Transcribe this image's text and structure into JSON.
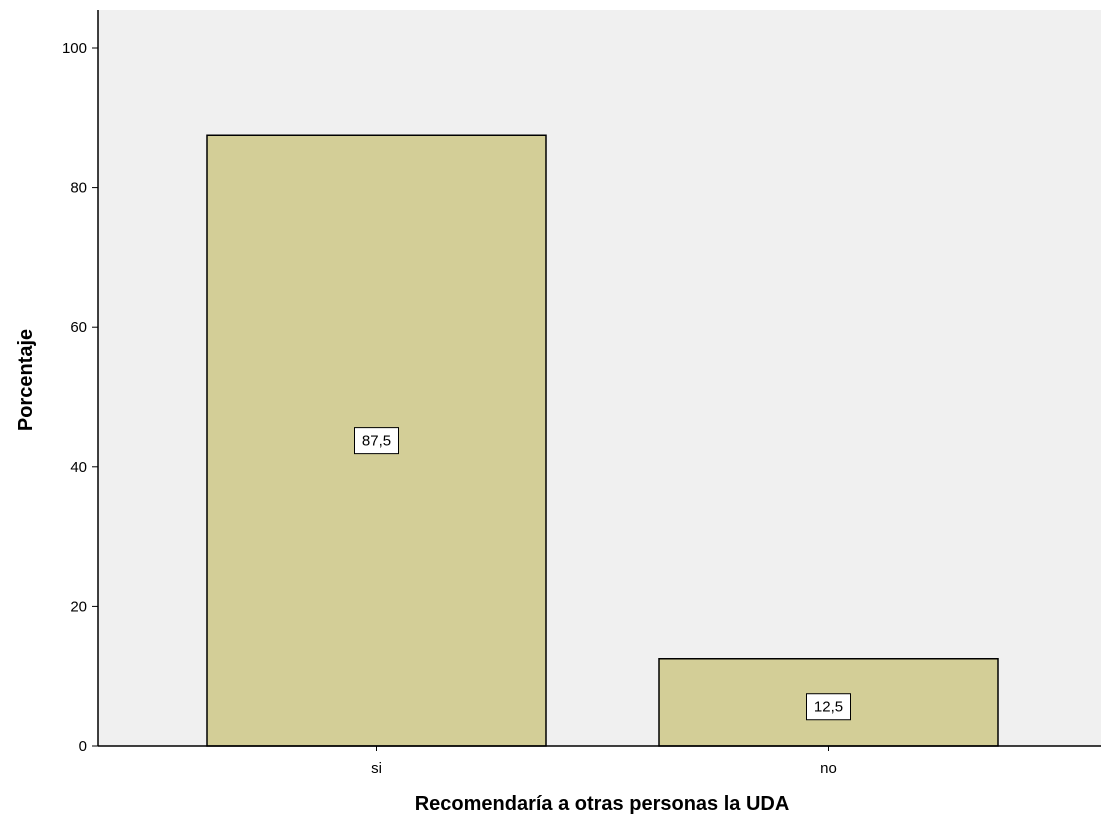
{
  "chart_data": {
    "type": "bar",
    "categories": [
      "si",
      "no"
    ],
    "values": [
      87.5,
      12.5
    ],
    "data_labels": [
      "87,5",
      "12,5"
    ],
    "xlabel": "Recomendaría a otras personas la UDA",
    "ylabel": "Porcentaje",
    "ylim": [
      0,
      100
    ],
    "y_ticks": [
      0,
      20,
      40,
      60,
      80,
      100
    ],
    "grid": false,
    "legend": "none"
  },
  "colors": {
    "plot_background": "#f0f0f0",
    "bar_fill": "#d3ce97",
    "bar_stroke": "#000000"
  }
}
